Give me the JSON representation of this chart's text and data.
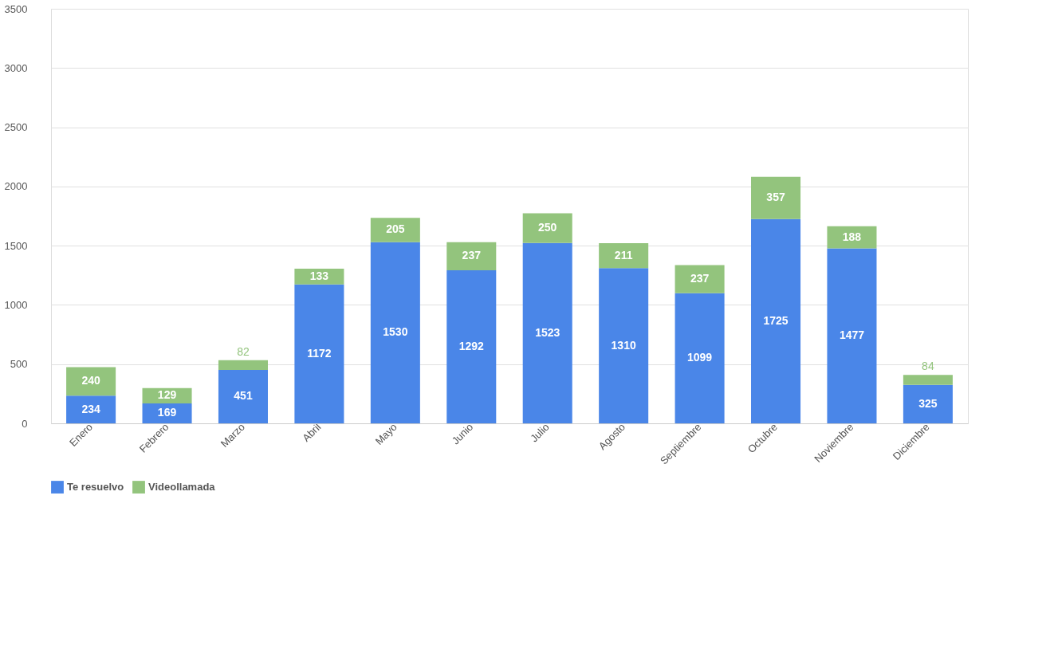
{
  "chart_data": {
    "type": "bar",
    "stacked": true,
    "categories": [
      "Enero",
      "Febrero",
      "Marzo",
      "Abril",
      "Mayo",
      "Junio",
      "Julio",
      "Agosto",
      "Septiembre",
      "Octubre",
      "Noviembre",
      "Diciembre"
    ],
    "series": [
      {
        "name": "Te resuelvo",
        "color": "#4a86e8",
        "values": [
          234,
          169,
          451,
          1172,
          1530,
          1292,
          1523,
          1310,
          1099,
          1725,
          1477,
          325
        ]
      },
      {
        "name": "Videollamada",
        "color": "#93c47d",
        "values": [
          240,
          129,
          82,
          133,
          205,
          237,
          250,
          211,
          237,
          357,
          188,
          84
        ]
      }
    ],
    "ylim": [
      0,
      3500
    ],
    "yticks": [
      0,
      500,
      1000,
      1500,
      2000,
      2500,
      3000,
      3500
    ],
    "grid": "y",
    "legend": "bottom",
    "data_labels": true
  }
}
